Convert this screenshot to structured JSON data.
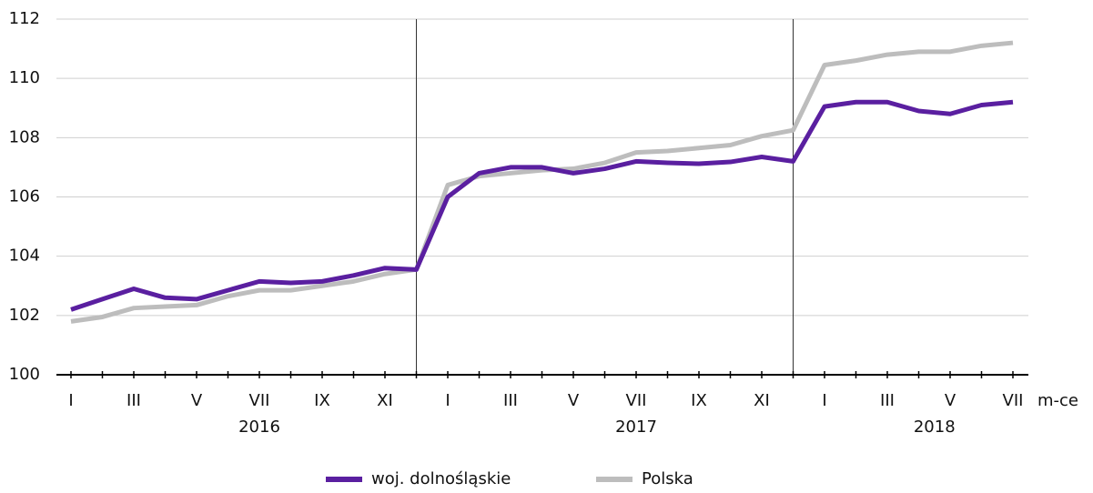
{
  "chart_data": {
    "type": "line",
    "categories": [
      "I",
      null,
      "III",
      null,
      "V",
      null,
      "VII",
      null,
      "IX",
      null,
      "XI",
      null,
      "I",
      null,
      "III",
      null,
      "V",
      null,
      "VII",
      null,
      "IX",
      null,
      "XI",
      null,
      "I",
      null,
      "III",
      null,
      "V",
      null,
      "VII"
    ],
    "years": [
      "2016",
      "2017",
      "2018"
    ],
    "x_label": "m-ce",
    "series": [
      {
        "name": "woj. dolnośląskie",
        "color": "#5a1fa0",
        "values": [
          102.2,
          102.55,
          102.9,
          102.6,
          102.55,
          102.85,
          103.15,
          103.1,
          103.15,
          103.35,
          103.6,
          103.55,
          106.0,
          106.8,
          107.0,
          107.0,
          106.8,
          106.95,
          107.2,
          107.15,
          107.12,
          107.18,
          107.35,
          107.2,
          109.05,
          109.2,
          109.2,
          108.9,
          108.8,
          109.1,
          109.2
        ]
      },
      {
        "name": "Polska",
        "color": "#bdbdbd",
        "values": [
          101.8,
          101.95,
          102.25,
          102.3,
          102.35,
          102.65,
          102.85,
          102.85,
          103.0,
          103.15,
          103.4,
          103.55,
          106.4,
          106.7,
          106.8,
          106.9,
          106.95,
          107.15,
          107.5,
          107.55,
          107.65,
          107.75,
          108.05,
          108.25,
          110.45,
          110.6,
          110.8,
          110.9,
          110.9,
          111.1,
          111.2
        ]
      }
    ],
    "ylim": [
      100,
      112
    ],
    "yticks": [
      100,
      102,
      104,
      106,
      108,
      110,
      112
    ],
    "grid": true,
    "legend": "bottom"
  }
}
